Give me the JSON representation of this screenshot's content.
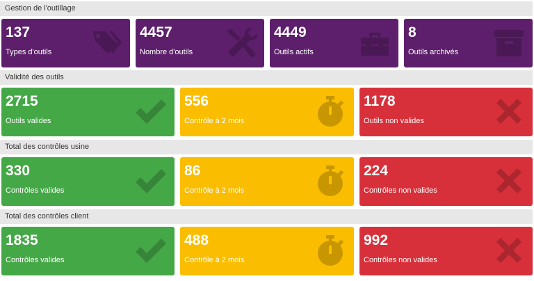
{
  "sections": [
    {
      "title": "Gestion de l'outillage"
    },
    {
      "title": "Validité des outils"
    },
    {
      "title": "Total des contrôles usine"
    },
    {
      "title": "Total des contrôles client"
    }
  ],
  "tooling": [
    {
      "value": "137",
      "label": "Types d'outils",
      "icon": "tags-icon"
    },
    {
      "value": "4457",
      "label": "Nombre d'outils",
      "icon": "tools-icon"
    },
    {
      "value": "4449",
      "label": "Outils actifs",
      "icon": "toolbox-icon"
    },
    {
      "value": "8",
      "label": "Outils archivés",
      "icon": "archive-box-icon"
    }
  ],
  "validity": [
    {
      "value": "2715",
      "label": "Outils valides",
      "icon": "checkmark-icon"
    },
    {
      "value": "556",
      "label": "Contrôle à 2 mois",
      "icon": "stopwatch-icon"
    },
    {
      "value": "1178",
      "label": "Outils non valides",
      "icon": "cross-icon"
    }
  ],
  "factory": [
    {
      "value": "330",
      "label": "Contrôles valides",
      "icon": "checkmark-icon"
    },
    {
      "value": "86",
      "label": "Contrôle à 2 mois",
      "icon": "stopwatch-icon"
    },
    {
      "value": "224",
      "label": "Contrôles non valides",
      "icon": "cross-icon"
    }
  ],
  "client": [
    {
      "value": "1835",
      "label": "Contrôles valides",
      "icon": "checkmark-icon"
    },
    {
      "value": "488",
      "label": "Contrôle à 2 mois",
      "icon": "stopwatch-icon"
    },
    {
      "value": "992",
      "label": "Contrôles non valides",
      "icon": "cross-icon"
    }
  ],
  "colors": {
    "purple": "#5d1f6b",
    "green": "#45a847",
    "yellow": "#fabd00",
    "red": "#d7303a",
    "section_bg": "#e7e7e7"
  }
}
